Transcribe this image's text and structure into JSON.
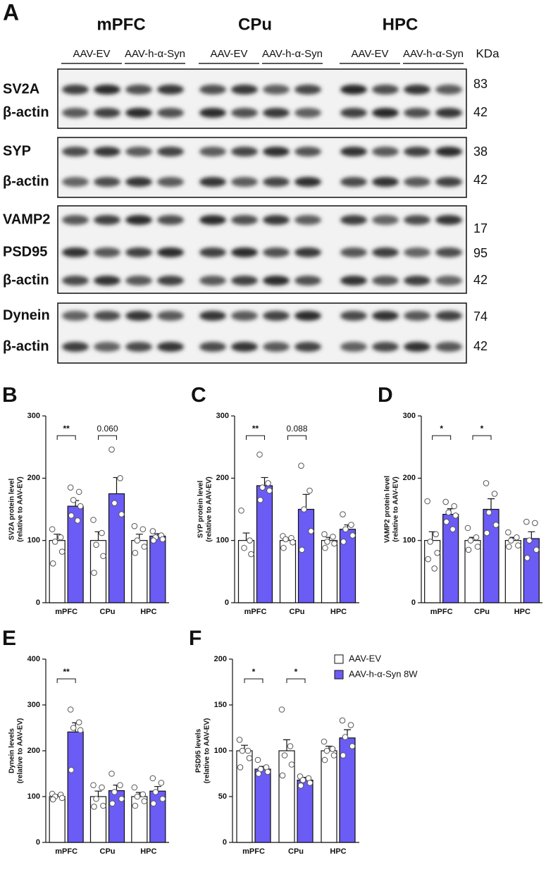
{
  "blot": {
    "panel": "A",
    "regions": [
      "mPFC",
      "CPu",
      "HPC"
    ],
    "groups": [
      "AAV-EV",
      "AAV-h-α-Syn"
    ],
    "unit": "KDa",
    "blocks": [
      {
        "rows": [
          {
            "label": "SV2A",
            "kda": "83"
          },
          {
            "label": "β-actin",
            "kda": "42"
          }
        ]
      },
      {
        "rows": [
          {
            "label": "SYP",
            "kda": "38"
          },
          {
            "label": "β-actin",
            "kda": "42"
          }
        ]
      },
      {
        "rows": [
          {
            "label": "VAMP2",
            "kda": "17"
          },
          {
            "label": "PSD95",
            "kda": "95"
          },
          {
            "label": "β-actin",
            "kda": "42"
          }
        ]
      },
      {
        "rows": [
          {
            "label": "Dynein",
            "kda": "74"
          },
          {
            "label": "β-actin",
            "kda": "42"
          }
        ]
      }
    ]
  },
  "chart_data": [
    {
      "type": "bar",
      "panel": "B",
      "ylabel": [
        "SV2A protein level",
        "(relative to AAV-EV)"
      ],
      "categories": [
        "mPFC",
        "CPu",
        "HPC"
      ],
      "ylim": [
        0,
        300
      ],
      "yticks": [
        0,
        100,
        200,
        300
      ],
      "brackets": [
        "**",
        "0.060",
        null
      ],
      "series": [
        {
          "color": "#ffffff",
          "values": [
            100,
            100,
            100
          ],
          "errors": [
            10,
            14,
            10
          ],
          "points": [
            [
              118,
              105,
              98,
              82,
              63
            ],
            [
              133,
              112,
              93,
              75,
              48
            ],
            [
              123,
              118,
              100,
              90,
              80
            ]
          ]
        },
        {
          "color": "#6b5cf5",
          "values": [
            155,
            175,
            107
          ],
          "errors": [
            9,
            26,
            4
          ],
          "points": [
            [
              185,
              178,
              165,
              155,
              140,
              132
            ],
            [
              246,
              200,
              160,
              142
            ],
            [
              115,
              108,
              105,
              102,
              100
            ]
          ]
        }
      ]
    },
    {
      "type": "bar",
      "panel": "C",
      "ylabel": [
        "SYP protein level",
        "(relative to AAV-EV)"
      ],
      "categories": [
        "mPFC",
        "CPu",
        "HPC"
      ],
      "ylim": [
        0,
        300
      ],
      "yticks": [
        0,
        100,
        200,
        300
      ],
      "brackets": [
        "**",
        "0.088",
        null
      ],
      "series": [
        {
          "color": "#ffffff",
          "values": [
            100,
            100,
            100
          ],
          "errors": [
            12,
            4,
            5
          ],
          "points": [
            [
              148,
              100,
              88,
              78
            ],
            [
              107,
              104,
              102,
              97,
              88
            ],
            [
              110,
              106,
              98,
              95,
              88
            ]
          ]
        },
        {
          "color": "#6b5cf5",
          "values": [
            188,
            150,
            118
          ],
          "errors": [
            13,
            24,
            7
          ],
          "points": [
            [
              238,
              192,
              185,
              180,
              165
            ],
            [
              220,
              180,
              150,
              115,
              85
            ],
            [
              142,
              125,
              118,
              108,
              98
            ]
          ]
        }
      ]
    },
    {
      "type": "bar",
      "panel": "D",
      "ylabel": [
        "VAMP2 protein level",
        "(relative to AAV-EV)"
      ],
      "categories": [
        "mPFC",
        "CPu",
        "HPC"
      ],
      "ylim": [
        0,
        300
      ],
      "yticks": [
        0,
        100,
        200,
        300
      ],
      "brackets": [
        "*",
        "*",
        null
      ],
      "series": [
        {
          "color": "#ffffff",
          "values": [
            100,
            100,
            100
          ],
          "errors": [
            14,
            5,
            5
          ],
          "points": [
            [
              163,
              110,
              98,
              80,
              70,
              55
            ],
            [
              120,
              105,
              100,
              90,
              85
            ],
            [
              113,
              105,
              100,
              92,
              90
            ]
          ]
        },
        {
          "color": "#6b5cf5",
          "values": [
            142,
            150,
            103
          ],
          "errors": [
            9,
            17,
            11
          ],
          "points": [
            [
              162,
              155,
              145,
              140,
              130,
              118
            ],
            [
              192,
              175,
              145,
              125,
              112
            ],
            [
              130,
              128,
              100,
              85,
              72
            ]
          ]
        }
      ]
    },
    {
      "type": "bar",
      "panel": "E",
      "ylabel": [
        "Dynein levels",
        "(relative to AAV-EV)"
      ],
      "categories": [
        "mPFC",
        "CPu",
        "HPC"
      ],
      "ylim": [
        0,
        400
      ],
      "yticks": [
        0,
        100,
        200,
        300,
        400
      ],
      "brackets": [
        "**",
        null,
        null
      ],
      "series": [
        {
          "color": "#ffffff",
          "values": [
            100,
            100,
            100
          ],
          "errors": [
            4,
            12,
            9
          ],
          "points": [
            [
              106,
              104,
              100,
              97,
              94
            ],
            [
              125,
              120,
              95,
              80,
              78
            ],
            [
              120,
              105,
              100,
              90,
              80
            ]
          ]
        },
        {
          "color": "#6b5cf5",
          "values": [
            241,
            113,
            112
          ],
          "errors": [
            20,
            12,
            10
          ],
          "points": [
            [
              290,
              262,
              250,
              245,
              158
            ],
            [
              150,
              125,
              110,
              95,
              85
            ],
            [
              140,
              130,
              110,
              95,
              85
            ]
          ]
        }
      ]
    },
    {
      "type": "bar",
      "panel": "F",
      "ylabel": [
        "PSD95 levels",
        "(relative to AAV-EV)"
      ],
      "categories": [
        "mPFC",
        "CPu",
        "HPC"
      ],
      "ylim": [
        0,
        200
      ],
      "yticks": [
        0,
        50,
        100,
        150,
        200
      ],
      "brackets": [
        "*",
        "*",
        null
      ],
      "legend": "top-right",
      "series": [
        {
          "name": "AAV-EV",
          "color": "#ffffff",
          "values": [
            100,
            100,
            100
          ],
          "errors": [
            6,
            12,
            5
          ],
          "points": [
            [
              112,
              100,
              100,
              92,
              82
            ],
            [
              145,
              105,
              95,
              85,
              73
            ],
            [
              110,
              102,
              100,
              95,
              90
            ]
          ]
        },
        {
          "name": "AAV-h-α-Syn 8W",
          "color": "#6b5cf5",
          "values": [
            80,
            68,
            114
          ],
          "errors": [
            3,
            3,
            9
          ],
          "points": [
            [
              90,
              82,
              80,
              77,
              75
            ],
            [
              72,
              70,
              68,
              65,
              62
            ],
            [
              133,
              128,
              115,
              105,
              95
            ]
          ]
        }
      ]
    }
  ]
}
